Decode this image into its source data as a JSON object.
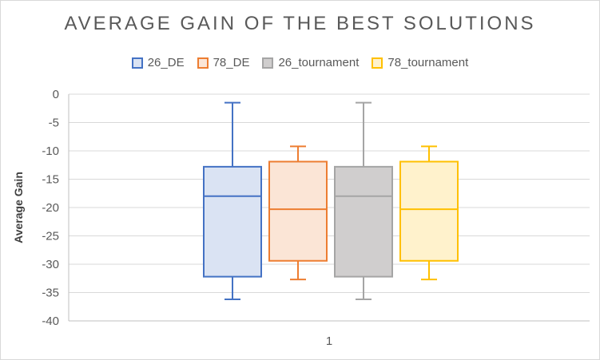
{
  "chart_data": {
    "type": "boxplot",
    "title": "AVERAGE GAIN OF THE BEST SOLUTIONS",
    "xlabel": "",
    "ylabel": "Average Gain",
    "ylim": [
      -40,
      0
    ],
    "yticks": [
      0,
      -5,
      -10,
      -15,
      -20,
      -25,
      -30,
      -35,
      -40
    ],
    "categories": [
      "1"
    ],
    "grid": true,
    "legend_position": "top",
    "series": [
      {
        "name": "26_DE",
        "stroke": "#4472c4",
        "fill": "#dae3f3",
        "min": -36.2,
        "q1": -32.2,
        "median": -18.0,
        "q3": -12.8,
        "max": -1.5
      },
      {
        "name": "78_DE",
        "stroke": "#ed7d31",
        "fill": "#fbe5d6",
        "min": -32.7,
        "q1": -29.4,
        "median": -20.3,
        "q3": -11.9,
        "max": -9.2
      },
      {
        "name": "26_tournament",
        "stroke": "#a5a5a5",
        "fill": "#d0cece",
        "min": -36.2,
        "q1": -32.2,
        "median": -18.0,
        "q3": -12.8,
        "max": -1.5
      },
      {
        "name": "78_tournament",
        "stroke": "#ffc000",
        "fill": "#fff2cc",
        "min": -32.7,
        "q1": -29.4,
        "median": -20.3,
        "q3": -11.9,
        "max": -9.2
      }
    ]
  }
}
